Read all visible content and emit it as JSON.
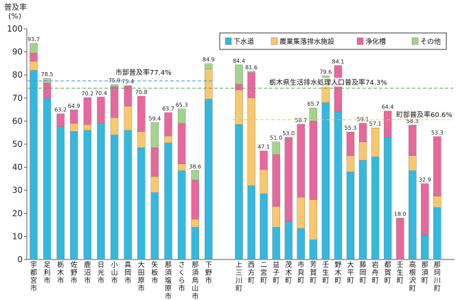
{
  "chart_data": {
    "type": "bar",
    "stacked": true,
    "ylabel": "普及率",
    "yunit": "(%)",
    "ylim": [
      0,
      100
    ],
    "yticks": [
      0,
      10,
      20,
      30,
      40,
      50,
      60,
      70,
      80,
      90,
      100
    ],
    "grid": false,
    "legend_position": "top-right",
    "series": [
      {
        "name": "下水道",
        "color": "#33b8e0"
      },
      {
        "name": "農業集落排水施設",
        "color": "#f9c86c"
      },
      {
        "name": "浄化槽",
        "color": "#e8679c"
      },
      {
        "name": "その他",
        "color": "#a4d48c"
      }
    ],
    "groups": [
      {
        "items": [
          {
            "name": "宇都宮市",
            "values": [
              82.0,
              4.0,
              3.5,
              4.2
            ],
            "total": "93.7"
          },
          {
            "name": "足利市",
            "values": [
              70.0,
              0.0,
              6.5,
              2.0
            ],
            "total": "78.5"
          },
          {
            "name": "栃木市",
            "values": [
              57.5,
              0.0,
              5.7,
              0.0
            ],
            "total": "63.2"
          },
          {
            "name": "佐野市",
            "values": [
              55.5,
              3.5,
              5.9,
              0.0
            ],
            "total": "64.9"
          },
          {
            "name": "鹿沼市",
            "values": [
              56.0,
              2.5,
              11.7,
              0.0
            ],
            "total": "70.2"
          },
          {
            "name": "日光市",
            "values": [
              59.0,
              0.0,
              11.4,
              0.0
            ],
            "total": "70.4"
          },
          {
            "name": "小山市",
            "values": [
              54.0,
              7.5,
              13.5,
              0.9
            ],
            "total": "75.9"
          },
          {
            "name": "真岡市",
            "values": [
              56.0,
              10.5,
              8.9,
              0.0
            ],
            "total": "75.4"
          },
          {
            "name": "大田原市",
            "values": [
              48.5,
              7.0,
              15.3,
              0.0
            ],
            "total": "70.8"
          },
          {
            "name": "矢板市",
            "values": [
              29.0,
              7.0,
              12.5,
              10.9
            ],
            "total": "59.4"
          },
          {
            "name": "那須塩原市",
            "values": [
              50.5,
              3.0,
              10.2,
              0.0
            ],
            "total": "63.7"
          },
          {
            "name": "さくら市",
            "values": [
              38.5,
              3.0,
              17.5,
              6.3
            ],
            "total": "65.3"
          },
          {
            "name": "那須烏山市",
            "values": [
              14.0,
              3.5,
              17.0,
              4.1
            ],
            "total": "38.6"
          },
          {
            "name": "下野市",
            "values": [
              69.5,
              13.0,
              0.0,
              2.4
            ],
            "total": "84.9"
          }
        ]
      },
      {
        "items": [
          {
            "name": "上三川町",
            "values": [
              58.5,
              15.0,
              2.5,
              8.4
            ],
            "total": "84.4"
          },
          {
            "name": "西方町",
            "values": [
              32.0,
              38.0,
              11.0,
              0.6
            ],
            "total": "81.6"
          },
          {
            "name": "二宮町",
            "values": [
              28.5,
              10.5,
              8.1,
              0.0
            ],
            "total": "47.1"
          },
          {
            "name": "益子町",
            "values": [
              14.0,
              9.0,
              22.5,
              5.5
            ],
            "total": "51.0"
          },
          {
            "name": "茂木町",
            "values": [
              16.5,
              0.0,
              36.5,
              0.0
            ],
            "total": "53.0"
          },
          {
            "name": "市貝町",
            "values": [
              13.5,
              13.5,
              31.7,
              0.0
            ],
            "total": "58.7"
          },
          {
            "name": "芳賀町",
            "values": [
              8.5,
              17.5,
              34.0,
              5.7
            ],
            "total": "65.7"
          },
          {
            "name": "壬生町",
            "values": [
              68.0,
              9.5,
              0.0,
              2.1
            ],
            "total": "79.6"
          },
          {
            "name": "野木町",
            "values": [
              64.0,
              0.0,
              20.1,
              0.0
            ],
            "total": "84.1"
          },
          {
            "name": "大平町",
            "values": [
              38.0,
              7.0,
              10.3,
              0.0
            ],
            "total": "55.3"
          },
          {
            "name": "藤岡町",
            "values": [
              43.0,
              8.0,
              8.1,
              0.0
            ],
            "total": "59.1"
          },
          {
            "name": "岩舟町",
            "values": [
              44.5,
              12.6,
              0.0,
              0.0
            ],
            "total": "57.1"
          },
          {
            "name": "都賀町",
            "values": [
              53.0,
              0.0,
              11.4,
              0.0
            ],
            "total": "64.4"
          },
          {
            "name": "壬生町",
            "values": [
              0.0,
              0.0,
              18.0,
              0.0
            ],
            "total": "18.0"
          },
          {
            "name": "高根沢町",
            "values": [
              38.5,
              6.5,
              13.3,
              0.0
            ],
            "total": "58.3"
          },
          {
            "name": "那須町",
            "values": [
              10.5,
              0.0,
              22.4,
              0.0
            ],
            "total": "32.9"
          },
          {
            "name": "那珂川町",
            "values": [
              22.5,
              5.0,
              25.8,
              0.0
            ],
            "total": "53.3"
          }
        ]
      }
    ],
    "reference_lines": [
      {
        "label": "市部普及率77.4%",
        "value": 77.4,
        "color": "#3a8fd8",
        "span": "group1"
      },
      {
        "label": "栃木県生活排水処理人口普及率74.3%",
        "value": 74.3,
        "color": "#4aa84a",
        "span": "all"
      },
      {
        "label": "町部普及率60.6%",
        "value": 60.6,
        "color": "#d8d838",
        "span": "group2"
      }
    ]
  }
}
